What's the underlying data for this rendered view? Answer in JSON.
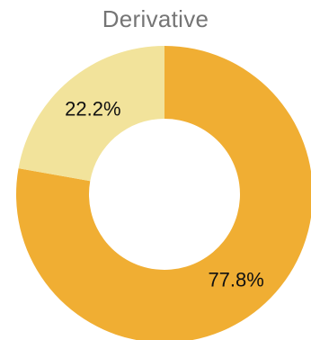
{
  "chart_data": {
    "type": "pie",
    "variant": "donut",
    "title": "Derivative",
    "slices": [
      {
        "value": 77.8,
        "label": "77.8%",
        "color": "#F0AE33"
      },
      {
        "value": 22.2,
        "label": "22.2%",
        "color": "#F2E39B"
      }
    ]
  }
}
